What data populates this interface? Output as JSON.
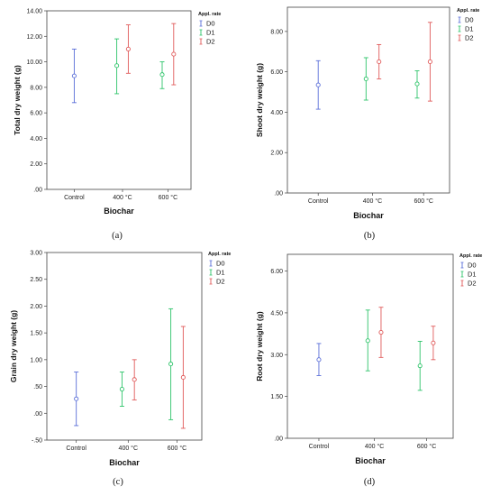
{
  "figure": {
    "legend_title": "Appl. rate",
    "xlabel": "Biochar",
    "categories": [
      "Control",
      "400 °C",
      "600 °C"
    ]
  },
  "colors": {
    "D0": "#5a6ed8",
    "D1": "#2ec46a",
    "D2": "#e05a5a"
  },
  "chart_data": [
    {
      "type": "errorbar",
      "panel_label": "(a)",
      "ylabel": "Total dry weight (g)",
      "xlabel": "Biochar",
      "ylim": [
        0,
        14
      ],
      "yticks": [
        ".00",
        "2.00",
        "4.00",
        "6.00",
        "8.00",
        "10.00",
        "12.00",
        "14.00"
      ],
      "ytick_values": [
        0,
        2,
        4,
        6,
        8,
        10,
        12,
        14
      ],
      "categories": [
        "Control",
        "400 °C",
        "600 °C"
      ],
      "legend": [
        "D0",
        "D1",
        "D2"
      ],
      "series": [
        {
          "name": "D0",
          "points": [
            {
              "category": "Control",
              "mean": 8.9,
              "low": 6.8,
              "high": 11.0
            }
          ]
        },
        {
          "name": "D1",
          "points": [
            {
              "category": "400 °C",
              "mean": 9.7,
              "low": 7.5,
              "high": 11.8
            },
            {
              "category": "600 °C",
              "mean": 9.0,
              "low": 7.9,
              "high": 10.0
            }
          ]
        },
        {
          "name": "D2",
          "points": [
            {
              "category": "400 °C",
              "mean": 11.0,
              "low": 9.1,
              "high": 12.9
            },
            {
              "category": "600 °C",
              "mean": 10.6,
              "low": 8.2,
              "high": 13.0
            }
          ]
        }
      ]
    },
    {
      "type": "errorbar",
      "panel_label": "(b)",
      "ylabel": "Shoot dry weight (g)",
      "xlabel": "Biochar",
      "ylim": [
        0,
        9.2
      ],
      "yticks": [
        ".00",
        "2.00",
        "4.00",
        "6.00",
        "8.00"
      ],
      "ytick_values": [
        0,
        2,
        4,
        6,
        8
      ],
      "categories": [
        "Control",
        "400 °C",
        "600 °C"
      ],
      "legend": [
        "D0",
        "D1",
        "D2"
      ],
      "series": [
        {
          "name": "D0",
          "points": [
            {
              "category": "Control",
              "mean": 5.35,
              "low": 4.15,
              "high": 6.55
            }
          ]
        },
        {
          "name": "D1",
          "points": [
            {
              "category": "400 °C",
              "mean": 5.65,
              "low": 4.6,
              "high": 6.7
            },
            {
              "category": "600 °C",
              "mean": 5.4,
              "low": 4.7,
              "high": 6.05
            }
          ]
        },
        {
          "name": "D2",
          "points": [
            {
              "category": "400 °C",
              "mean": 6.5,
              "low": 5.65,
              "high": 7.35
            },
            {
              "category": "600 °C",
              "mean": 6.5,
              "low": 4.55,
              "high": 8.45
            }
          ]
        }
      ]
    },
    {
      "type": "errorbar",
      "panel_label": "(c)",
      "ylabel": "Grain dry weight (g)",
      "xlabel": "Biochar",
      "ylim": [
        -0.5,
        3.0
      ],
      "yticks": [
        "-.50",
        ".00",
        ".50",
        "1.00",
        "1.50",
        "2.00",
        "2.50",
        "3.00"
      ],
      "ytick_values": [
        -0.5,
        0,
        0.5,
        1.0,
        1.5,
        2.0,
        2.5,
        3.0
      ],
      "categories": [
        "Control",
        "400 °C",
        "600 °C"
      ],
      "legend": [
        "D0",
        "D1",
        "D2"
      ],
      "series": [
        {
          "name": "D0",
          "points": [
            {
              "category": "Control",
              "mean": 0.27,
              "low": -0.23,
              "high": 0.77
            }
          ]
        },
        {
          "name": "D1",
          "points": [
            {
              "category": "400 °C",
              "mean": 0.45,
              "low": 0.13,
              "high": 0.77
            },
            {
              "category": "600 °C",
              "mean": 0.92,
              "low": -0.12,
              "high": 1.95
            }
          ]
        },
        {
          "name": "D2",
          "points": [
            {
              "category": "400 °C",
              "mean": 0.63,
              "low": 0.25,
              "high": 1.0
            },
            {
              "category": "600 °C",
              "mean": 0.67,
              "low": -0.28,
              "high": 1.62
            }
          ]
        }
      ]
    },
    {
      "type": "errorbar",
      "panel_label": "(d)",
      "ylabel": "Root dry weight (g)",
      "xlabel": "Biochar",
      "ylim": [
        0,
        6.6
      ],
      "yticks": [
        ".00",
        "1.50",
        "3.00",
        "4.50",
        "6.00"
      ],
      "ytick_values": [
        0,
        1.5,
        3.0,
        4.5,
        6.0
      ],
      "categories": [
        "Control",
        "400 °C",
        "600 °C"
      ],
      "legend": [
        "D0",
        "D1",
        "D2"
      ],
      "series": [
        {
          "name": "D0",
          "points": [
            {
              "category": "Control",
              "mean": 2.82,
              "low": 2.25,
              "high": 3.4
            }
          ]
        },
        {
          "name": "D1",
          "points": [
            {
              "category": "400 °C",
              "mean": 3.5,
              "low": 2.42,
              "high": 4.6
            },
            {
              "category": "600 °C",
              "mean": 2.6,
              "low": 1.72,
              "high": 3.48
            }
          ]
        },
        {
          "name": "D2",
          "points": [
            {
              "category": "400 °C",
              "mean": 3.8,
              "low": 2.9,
              "high": 4.7
            },
            {
              "category": "600 °C",
              "mean": 3.42,
              "low": 2.82,
              "high": 4.02
            }
          ]
        }
      ]
    }
  ]
}
